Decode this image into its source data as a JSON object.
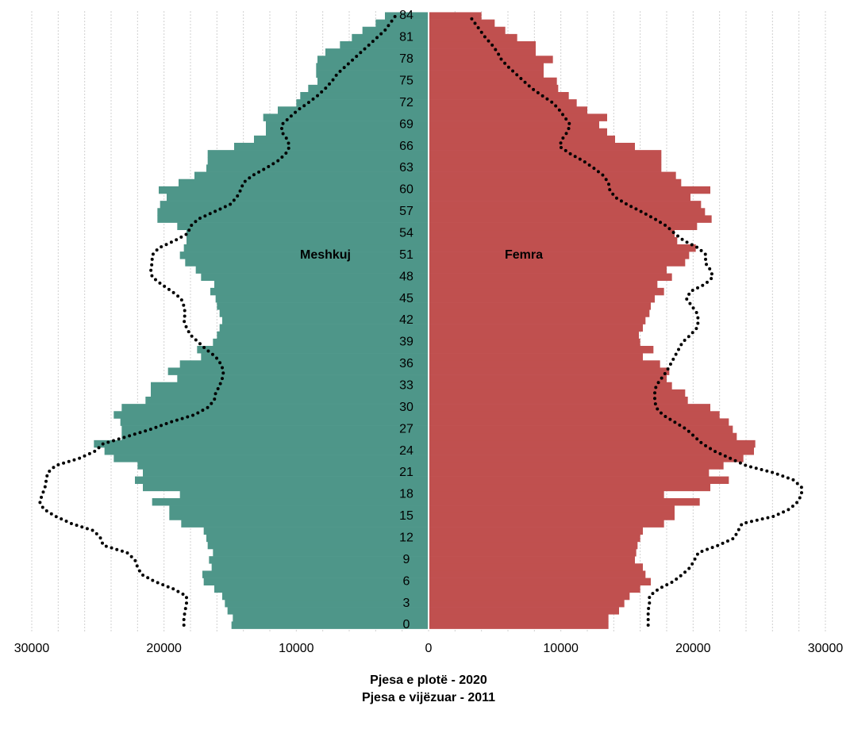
{
  "chart_data": {
    "type": "pyramid",
    "categories": [
      "0",
      null,
      null,
      "3",
      null,
      null,
      "6",
      null,
      null,
      "9",
      null,
      null,
      "12",
      null,
      null,
      "15",
      null,
      null,
      "18",
      null,
      null,
      "21",
      null,
      null,
      "24",
      null,
      null,
      "27",
      null,
      null,
      "30",
      null,
      null,
      "33",
      null,
      null,
      "36",
      null,
      null,
      "39",
      null,
      null,
      "42",
      null,
      null,
      "45",
      null,
      null,
      "48",
      null,
      null,
      "51",
      null,
      null,
      "54",
      null,
      null,
      "57",
      null,
      null,
      "60",
      null,
      null,
      "63",
      null,
      null,
      "66",
      null,
      null,
      "69",
      null,
      null,
      "72",
      null,
      null,
      "75",
      null,
      null,
      "78",
      null,
      null,
      "81",
      null,
      null,
      "84"
    ],
    "series": [
      {
        "name": "Meshkuj",
        "color": "#4e9689",
        "side": "left",
        "values": [
          14900,
          14800,
          15200,
          15400,
          15600,
          16200,
          17000,
          17100,
          16400,
          16600,
          16300,
          16700,
          16800,
          17000,
          18700,
          19600,
          19600,
          20900,
          18800,
          21600,
          22200,
          21600,
          22000,
          23800,
          24500,
          25300,
          23200,
          23200,
          23300,
          23800,
          23200,
          21400,
          21000,
          21000,
          19000,
          19700,
          18800,
          17200,
          17500,
          16300,
          16000,
          15800,
          15600,
          15800,
          16000,
          16100,
          16500,
          16200,
          17200,
          17600,
          18400,
          18800,
          18500,
          18300,
          18300,
          19000,
          20500,
          20500,
          20300,
          19800,
          20400,
          18900,
          17700,
          16800,
          16700,
          16700,
          14700,
          13200,
          12300,
          12300,
          12500,
          11400,
          10000,
          9700,
          9100,
          8400,
          8500,
          8500,
          8400,
          7800,
          6700,
          5800,
          5000,
          4000,
          3300
        ]
      },
      {
        "name": "Femra",
        "color": "#c0504f",
        "side": "right",
        "values": [
          13600,
          13600,
          14400,
          14800,
          15200,
          16000,
          16800,
          16400,
          16200,
          15600,
          15700,
          15800,
          16000,
          16200,
          17800,
          18600,
          18600,
          20500,
          17800,
          21300,
          22700,
          21200,
          22300,
          23800,
          24600,
          24700,
          23300,
          23000,
          22700,
          22000,
          21300,
          19600,
          19400,
          18400,
          18000,
          18200,
          17500,
          16200,
          17000,
          16000,
          15900,
          16200,
          16400,
          16700,
          16800,
          17100,
          17800,
          17300,
          18400,
          18000,
          19400,
          19700,
          20200,
          18800,
          18600,
          20300,
          21400,
          20900,
          20600,
          19800,
          21300,
          19100,
          18700,
          17600,
          17600,
          17600,
          15600,
          14100,
          13500,
          12900,
          13500,
          12000,
          11200,
          10600,
          9800,
          9700,
          8700,
          8700,
          9400,
          8100,
          8100,
          6700,
          5800,
          5000,
          4000
        ]
      }
    ],
    "series_2011": [
      {
        "side": "left",
        "color": "#000000",
        "style": "dotted",
        "values": [
          18500,
          18500,
          18400,
          18300,
          18300,
          19300,
          20700,
          21700,
          22000,
          22200,
          22800,
          24600,
          24800,
          25300,
          27000,
          28200,
          29100,
          29400,
          29200,
          29000,
          28900,
          28800,
          28200,
          26400,
          25200,
          24600,
          22800,
          21000,
          19500,
          17700,
          16700,
          16200,
          16100,
          15800,
          15600,
          15500,
          15700,
          16100,
          16800,
          17400,
          18000,
          18300,
          18500,
          18400,
          18500,
          18700,
          19400,
          20200,
          20900,
          21000,
          20900,
          20900,
          20400,
          19200,
          18200,
          18000,
          17400,
          16200,
          15000,
          14500,
          14200,
          14000,
          13300,
          12300,
          11400,
          10800,
          10500,
          10700,
          11100,
          11100,
          10500,
          9900,
          9100,
          8400,
          7800,
          7300,
          6900,
          6300,
          5700,
          5100,
          4500,
          3900,
          3300,
          2900,
          2500
        ]
      },
      {
        "side": "right",
        "color": "#000000",
        "style": "dotted",
        "values": [
          16600,
          16600,
          16600,
          16700,
          16700,
          17400,
          18500,
          19200,
          19800,
          20100,
          20400,
          21900,
          23100,
          23400,
          23700,
          26100,
          27300,
          27900,
          28200,
          28200,
          27600,
          26100,
          24000,
          22800,
          21600,
          20700,
          20100,
          19500,
          18600,
          17700,
          17200,
          17100,
          17100,
          17200,
          17600,
          18000,
          18300,
          18600,
          18900,
          19200,
          19800,
          20300,
          20400,
          20300,
          19900,
          19500,
          19800,
          20900,
          21500,
          21300,
          20900,
          21000,
          20400,
          19300,
          18600,
          18000,
          17100,
          16100,
          15000,
          14100,
          13700,
          13600,
          13200,
          12500,
          11700,
          10700,
          9900,
          10100,
          10500,
          10700,
          10300,
          9900,
          9400,
          8600,
          7800,
          7200,
          6600,
          6000,
          5500,
          5200,
          4800,
          4300,
          3900,
          3500,
          3100
        ]
      }
    ],
    "xlim": [
      -30000,
      30000
    ],
    "xticks": [
      {
        "value": -30000,
        "label": "30000"
      },
      {
        "value": -20000,
        "label": "20000"
      },
      {
        "value": -10000,
        "label": "10000"
      },
      0,
      10000,
      20000,
      30000
    ],
    "xminorticks": [
      -30000,
      -28000,
      -26000,
      -24000,
      -22000,
      -20000,
      -18000,
      -16000,
      -14000,
      -12000,
      -10000,
      -8000,
      -6000,
      -4000,
      -2000,
      0,
      2000,
      4000,
      6000,
      8000,
      10000,
      12000,
      14000,
      16000,
      18000,
      20000,
      22000,
      24000,
      26000,
      28000,
      30000
    ],
    "grid": true,
    "notes": [
      "Pjesa e plotë - 2020",
      "Pjesa e vijëzuar - 2011"
    ]
  }
}
